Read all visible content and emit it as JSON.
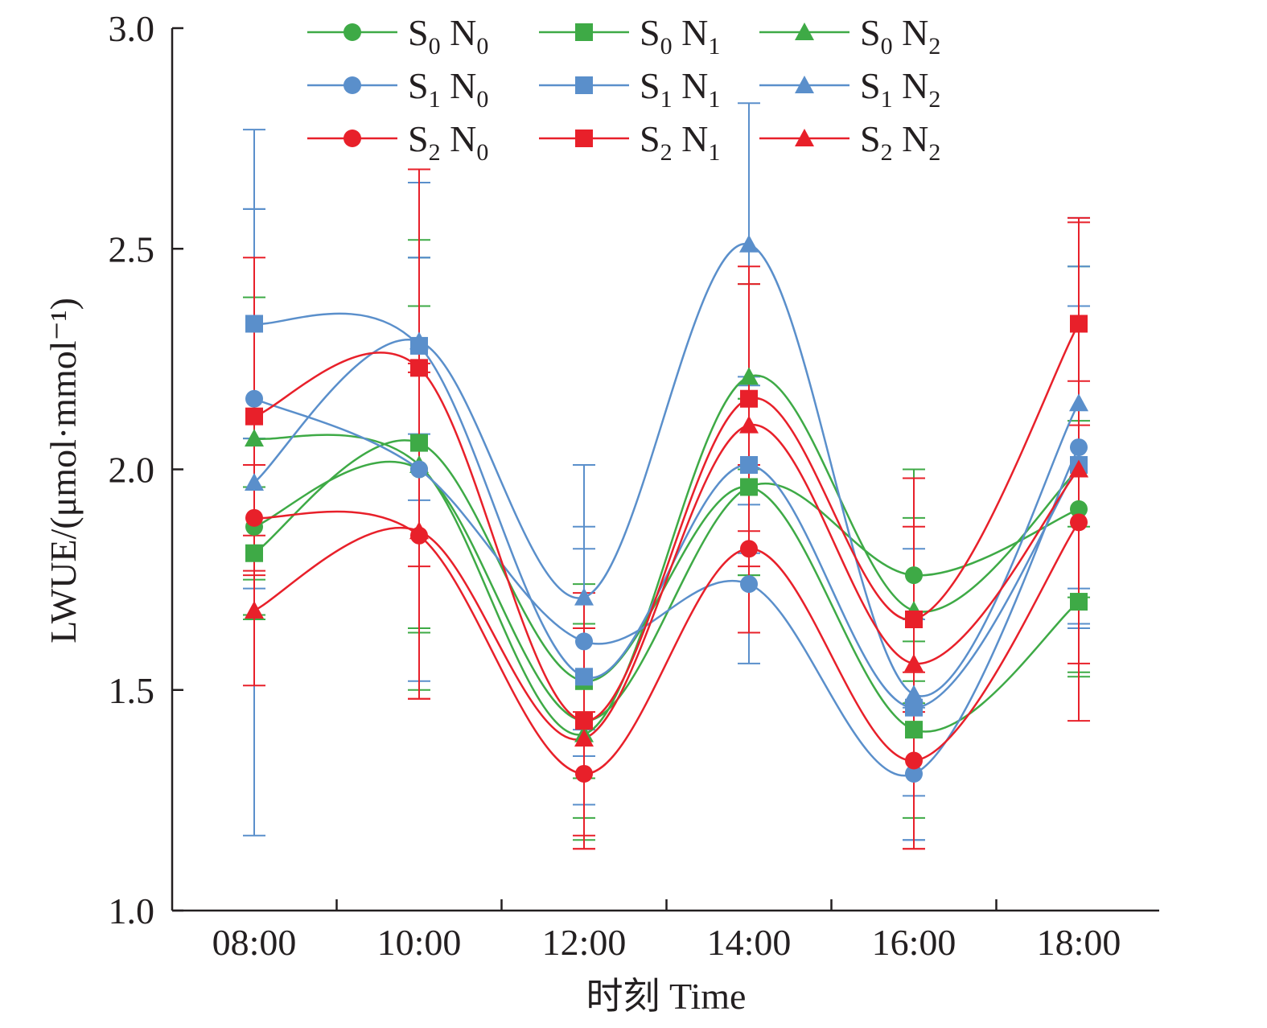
{
  "chart_data": {
    "type": "line",
    "xlabel": "时刻 Time",
    "ylabel": "LWUE/(μmol·mmol⁻¹)",
    "categories": [
      "08:00",
      "10:00",
      "12:00",
      "14:00",
      "16:00",
      "18:00"
    ],
    "ylim": [
      1.0,
      3.0
    ],
    "yticks": [
      "1.0",
      "1.5",
      "2.0",
      "2.5",
      "3.0"
    ],
    "legend_position": "top",
    "grid": false,
    "series": [
      {
        "name": "S0N0",
        "label": {
          "s": "0",
          "n": "0"
        },
        "color": "#3eaa46",
        "marker": "circle",
        "values": [
          1.87,
          2.0,
          1.43,
          1.96,
          1.76,
          1.91
        ],
        "errors": [
          0.2,
          0.37,
          0.22,
          0.2,
          0.24,
          0.2
        ]
      },
      {
        "name": "S0N1",
        "label": {
          "s": "0",
          "n": "1"
        },
        "color": "#3eaa46",
        "marker": "square",
        "values": [
          1.81,
          2.06,
          1.52,
          1.96,
          1.41,
          1.7
        ],
        "errors": [
          0.15,
          0.42,
          0.22,
          0.2,
          0.2,
          0.17
        ]
      },
      {
        "name": "S0N2",
        "label": {
          "s": "0",
          "n": "2"
        },
        "color": "#3eaa46",
        "marker": "triangle",
        "values": [
          2.07,
          2.01,
          1.4,
          2.21,
          1.68,
          2.0
        ],
        "errors": [
          0.32,
          0.51,
          0.24,
          0.21,
          0.21,
          0.46
        ]
      },
      {
        "name": "S1N0",
        "label": {
          "s": "1",
          "n": "0"
        },
        "color": "#5a8fcb",
        "marker": "circle",
        "values": [
          2.16,
          2.0,
          1.61,
          1.74,
          1.31,
          2.05
        ],
        "errors": [
          0.43,
          0.48,
          0.26,
          0.18,
          0.15,
          0.41
        ]
      },
      {
        "name": "S1N1",
        "label": {
          "s": "1",
          "n": "1"
        },
        "color": "#5a8fcb",
        "marker": "square",
        "values": [
          2.33,
          2.28,
          1.53,
          2.01,
          1.46,
          2.01
        ],
        "errors": [
          0.26,
          0.2,
          0.29,
          0.2,
          0.2,
          0.36
        ]
      },
      {
        "name": "S1N2",
        "label": {
          "s": "1",
          "n": "2"
        },
        "color": "#5a8fcb",
        "marker": "triangle",
        "values": [
          1.97,
          2.29,
          1.71,
          2.51,
          1.49,
          2.15
        ],
        "errors": [
          0.8,
          0.36,
          0.3,
          0.32,
          0.33,
          0.42
        ]
      },
      {
        "name": "S2N0",
        "label": {
          "s": "2",
          "n": "0"
        },
        "color": "#e8202a",
        "marker": "circle",
        "values": [
          1.89,
          1.85,
          1.31,
          1.82,
          1.34,
          1.88
        ],
        "errors": [
          0.12,
          0.37,
          0.14,
          0.19,
          0.2,
          0.32
        ]
      },
      {
        "name": "S2N1",
        "label": {
          "s": "2",
          "n": "1"
        },
        "color": "#e8202a",
        "marker": "square",
        "values": [
          2.12,
          2.23,
          1.43,
          2.16,
          1.66,
          2.33
        ],
        "errors": [
          0.36,
          0.45,
          0.29,
          0.3,
          0.21,
          0.23
        ]
      },
      {
        "name": "S2N2",
        "label": {
          "s": "2",
          "n": "2"
        },
        "color": "#e8202a",
        "marker": "triangle",
        "values": [
          1.68,
          1.86,
          1.39,
          2.1,
          1.56,
          2.0
        ],
        "errors": [
          0.17,
          0.38,
          0.25,
          0.32,
          0.42,
          0.57
        ]
      }
    ]
  }
}
